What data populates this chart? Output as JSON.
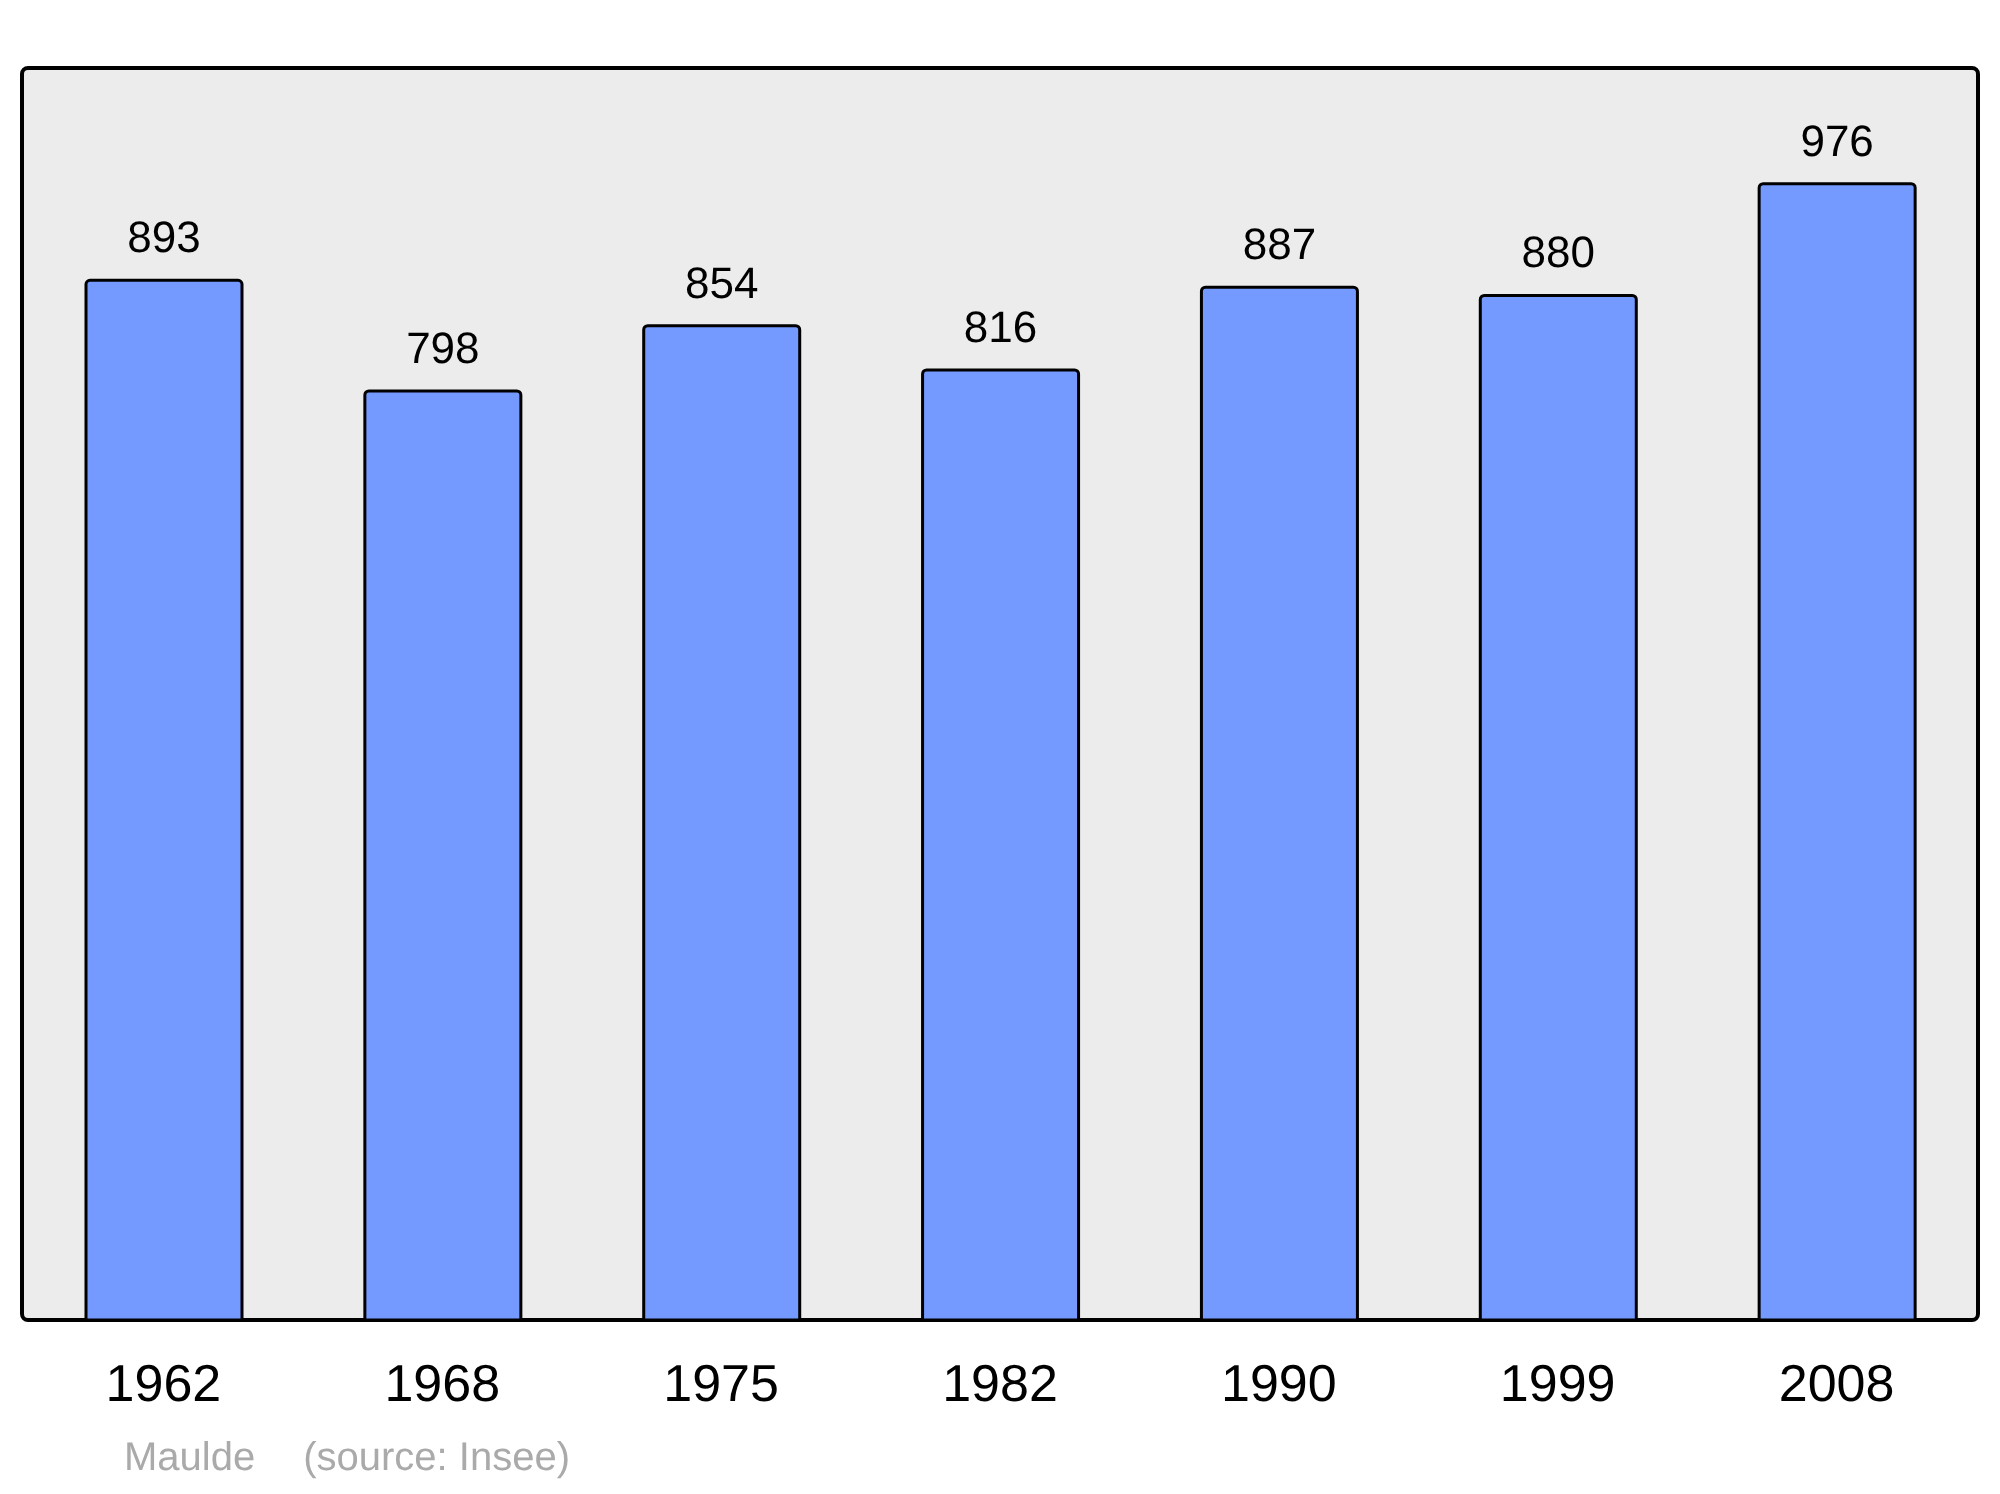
{
  "chart_data": {
    "type": "bar",
    "categories": [
      "1962",
      "1968",
      "1975",
      "1982",
      "1990",
      "1999",
      "2008"
    ],
    "values": [
      893,
      798,
      854,
      816,
      887,
      880,
      976
    ],
    "color": "#7499ff",
    "data_labels": true,
    "annotations": [
      "Maulde",
      "(source: Insee)"
    ]
  }
}
